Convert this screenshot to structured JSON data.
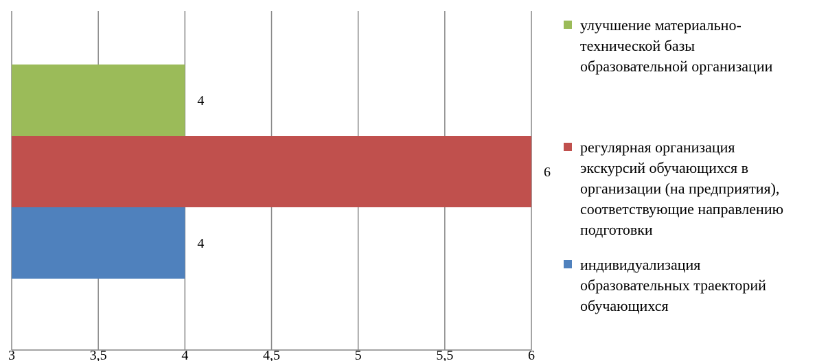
{
  "chart_data": {
    "type": "bar",
    "orientation": "horizontal",
    "title": "",
    "xlabel": "",
    "ylabel": "",
    "xlim": [
      3,
      6
    ],
    "x_ticks": [
      "3",
      "3,5",
      "4",
      "4,5",
      "5",
      "5,5",
      "6"
    ],
    "x_tick_values": [
      3,
      3.5,
      4,
      4.5,
      5,
      5.5,
      6
    ],
    "grid": "vertical",
    "legend_position": "right",
    "series": [
      {
        "name": "индивидуализация\nобразовательных траекторий\nобучающихся",
        "value": 4,
        "data_label": "4",
        "color": "#4F81BD"
      },
      {
        "name": "регулярная организация\nэкскурсий обучающихся в\nорганизации (на предприятия),\nсоответствующие направлению\nподготовки",
        "value": 6,
        "data_label": "6",
        "color": "#C0504D"
      },
      {
        "name": "улучшение материально-\nтехнической базы\nобразовательной организации",
        "value": 4,
        "data_label": "4",
        "color": "#9BBB59"
      }
    ]
  }
}
